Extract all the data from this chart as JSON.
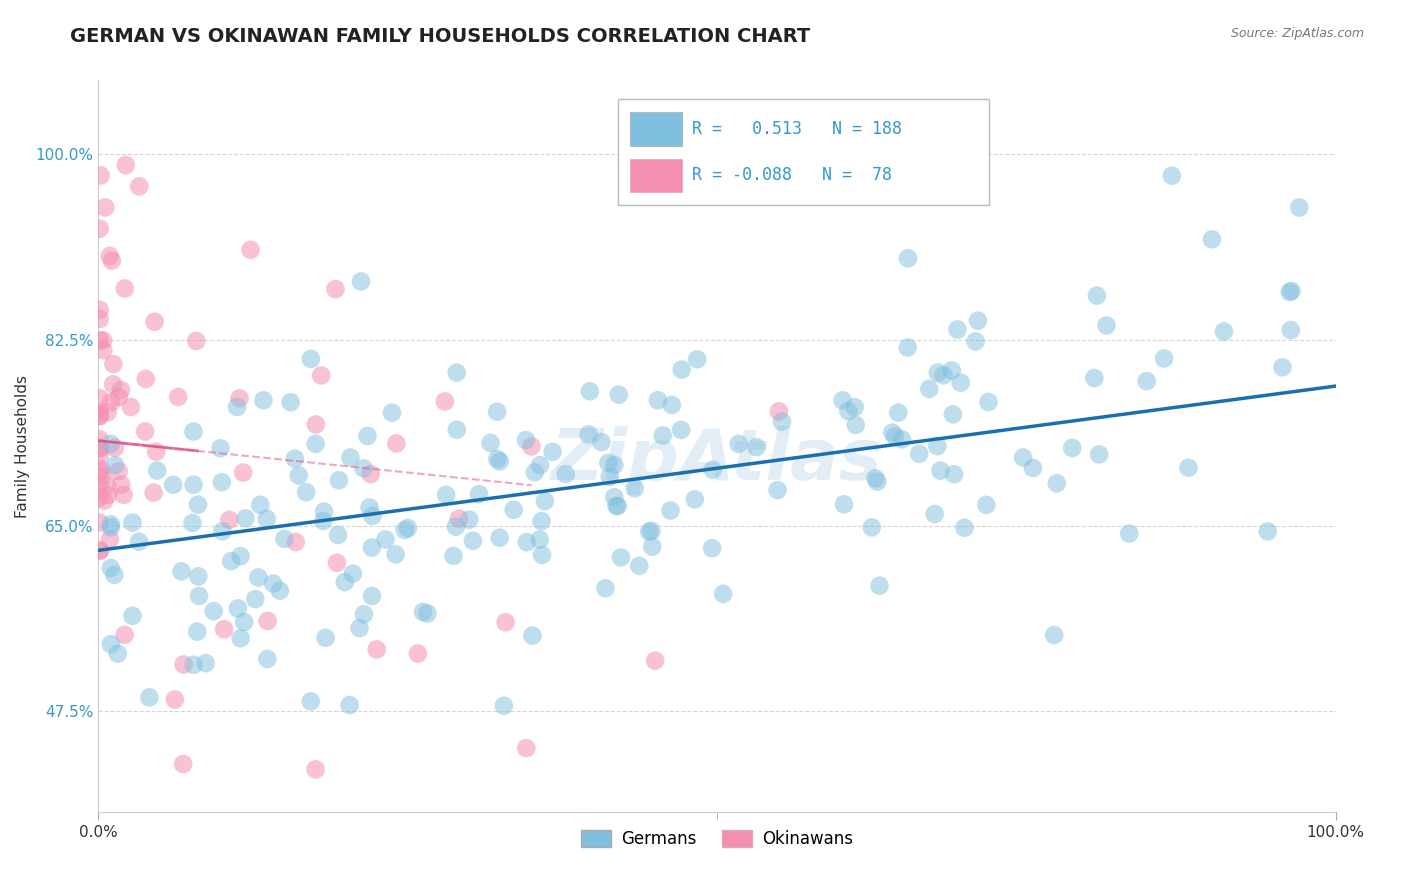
{
  "title": "GERMAN VS OKINAWAN FAMILY HOUSEHOLDS CORRELATION CHART",
  "source_text": "Source: ZipAtlas.com",
  "ylabel": "Family Households",
  "watermark": "ZipAtlas",
  "xlim": [
    0.0,
    1.0
  ],
  "ylim": [
    0.38,
    1.07
  ],
  "yticks": [
    0.475,
    0.65,
    0.825,
    1.0
  ],
  "ytick_labels": [
    "47.5%",
    "65.0%",
    "82.5%",
    "100.0%"
  ],
  "xtick_labels": [
    "0.0%",
    "100.0%"
  ],
  "german_color": "#7fbfdf",
  "okinawan_color": "#f48fb1",
  "german_line_color": "#1a6faf",
  "okinawan_line_color": "#e05080",
  "r_german": 0.513,
  "n_german": 188,
  "r_okinawan": -0.088,
  "n_okinawan": 78,
  "legend_labels": [
    "Germans",
    "Okinawans"
  ],
  "background_color": "#ffffff",
  "grid_color": "#cccccc",
  "title_fontsize": 14,
  "axis_label_fontsize": 11,
  "tick_fontsize": 11,
  "legend_r_color": "#3399cc",
  "legend_n_color": "#3399cc"
}
